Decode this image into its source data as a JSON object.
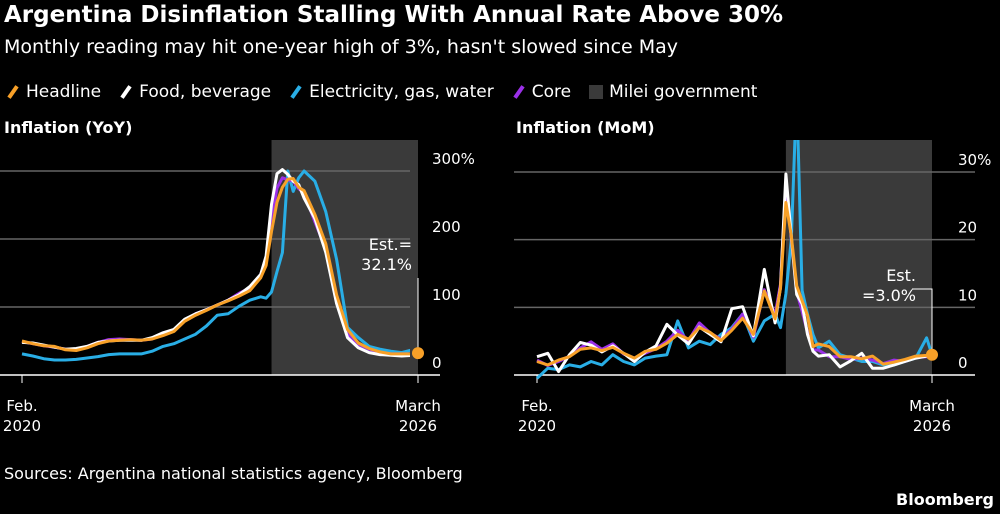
{
  "title": "Argentina Disinflation Stalling With Annual Rate Above 30%",
  "subtitle": "Monthly reading may hit one-year high of 3%, hasn't slowed since May",
  "legend": [
    {
      "label": "Headline",
      "color": "#f7a028"
    },
    {
      "label": "Food, beverage",
      "color": "#ffffff"
    },
    {
      "label": "Electricity, gas, water",
      "color": "#29aee6"
    },
    {
      "label": "Core",
      "color": "#9b30e8"
    },
    {
      "label": "Milei government",
      "color": "#3a3a3a"
    }
  ],
  "source": "Sources: Argentina national statistics agency, Bloomberg",
  "brand": "Bloomberg",
  "chart_data": [
    {
      "type": "line",
      "title": "Inflation (YoY)",
      "ylim": [
        0,
        300
      ],
      "yticks": [
        "0",
        "100",
        "200",
        "300%"
      ],
      "ytick_values": [
        0,
        100,
        200,
        300
      ],
      "xtick_labels": [
        [
          "Feb.",
          "2020"
        ],
        [
          "March",
          "2026"
        ]
      ],
      "xlim": [
        "2020-02",
        "2026-03"
      ],
      "shaded": {
        "label": "Milei government",
        "from": "2023-12",
        "to": "2026-03"
      },
      "annotation": {
        "lines": [
          "Est.=",
          "32.1%"
        ],
        "x": "2026-03",
        "y": 32.1
      },
      "x": [
        "2020-02",
        "2020-04",
        "2020-06",
        "2020-08",
        "2020-10",
        "2020-12",
        "2021-02",
        "2021-04",
        "2021-06",
        "2021-08",
        "2021-10",
        "2021-12",
        "2022-02",
        "2022-04",
        "2022-06",
        "2022-08",
        "2022-10",
        "2022-12",
        "2023-02",
        "2023-04",
        "2023-06",
        "2023-08",
        "2023-10",
        "2023-11",
        "2023-12",
        "2024-01",
        "2024-02",
        "2024-03",
        "2024-04",
        "2024-05",
        "2024-06",
        "2024-08",
        "2024-10",
        "2024-12",
        "2025-02",
        "2025-04",
        "2025-06",
        "2025-08",
        "2025-10",
        "2025-12",
        "2026-02"
      ],
      "series": [
        {
          "name": "Headline",
          "values": [
            50,
            46,
            43,
            42,
            37,
            36,
            40,
            46,
            50,
            51,
            52,
            51,
            53,
            58,
            64,
            79,
            88,
            95,
            103,
            109,
            116,
            124,
            143,
            161,
            211,
            254,
            276,
            288,
            289,
            276,
            271,
            236,
            193,
            118,
            67,
            47,
            39,
            34,
            31,
            31,
            31
          ]
        },
        {
          "name": "Food, beverage",
          "values": [
            48,
            47,
            44,
            41,
            38,
            39,
            42,
            48,
            50,
            51,
            51,
            51,
            55,
            62,
            67,
            82,
            90,
            96,
            103,
            110,
            118,
            130,
            148,
            175,
            251,
            296,
            302,
            295,
            285,
            280,
            260,
            230,
            180,
            105,
            55,
            40,
            33,
            30,
            29,
            28,
            29
          ]
        },
        {
          "name": "Electricity, gas, water",
          "values": [
            31,
            28,
            24,
            22,
            22,
            23,
            25,
            27,
            30,
            31,
            31,
            31,
            35,
            42,
            46,
            53,
            60,
            72,
            88,
            90,
            101,
            110,
            115,
            113,
            122,
            152,
            180,
            300,
            270,
            290,
            300,
            285,
            240,
            170,
            70,
            55,
            42,
            38,
            35,
            33,
            37
          ]
        },
        {
          "name": "Core",
          "values": [
            49,
            46,
            43,
            41,
            38,
            38,
            42,
            48,
            52,
            53,
            52,
            51,
            53,
            60,
            66,
            80,
            90,
            96,
            103,
            110,
            120,
            128,
            148,
            170,
            228,
            275,
            290,
            287,
            285,
            274,
            268,
            225,
            185,
            110,
            60,
            45,
            38,
            33,
            31,
            31,
            31
          ]
        }
      ],
      "estimate_point": {
        "x": "2026-03",
        "y": 32.1
      }
    },
    {
      "type": "line",
      "title": "Inflation (MoM)",
      "ylim": [
        0,
        30
      ],
      "yticks": [
        "0",
        "10",
        "20",
        "30%"
      ],
      "ytick_values": [
        0,
        10,
        20,
        30
      ],
      "xtick_labels": [
        [
          "Feb.",
          "2020"
        ],
        [
          "March",
          "2026"
        ]
      ],
      "xlim": [
        "2020-02",
        "2026-03"
      ],
      "shaded": {
        "label": "Milei government",
        "from": "2023-12",
        "to": "2026-03"
      },
      "annotation": {
        "lines": [
          "Est.",
          "=3.0%"
        ],
        "x": "2026-03",
        "y": 3.0
      },
      "x": [
        "2020-02",
        "2020-04",
        "2020-06",
        "2020-08",
        "2020-10",
        "2020-12",
        "2021-02",
        "2021-04",
        "2021-06",
        "2021-08",
        "2021-10",
        "2021-12",
        "2022-02",
        "2022-04",
        "2022-06",
        "2022-08",
        "2022-10",
        "2022-12",
        "2023-02",
        "2023-04",
        "2023-06",
        "2023-08",
        "2023-10",
        "2023-11",
        "2023-12",
        "2024-01",
        "2024-02",
        "2024-03",
        "2024-04",
        "2024-05",
        "2024-06",
        "2024-08",
        "2024-10",
        "2024-12",
        "2025-02",
        "2025-04",
        "2025-06",
        "2025-08",
        "2025-10",
        "2025-12",
        "2026-02"
      ],
      "series": [
        {
          "name": "Headline",
          "values": [
            2.0,
            1.5,
            2.2,
            2.7,
            3.8,
            4.0,
            3.6,
            4.1,
            3.2,
            2.5,
            3.5,
            3.8,
            4.7,
            6.0,
            5.3,
            7.0,
            6.3,
            5.1,
            6.6,
            8.4,
            6.0,
            12.4,
            8.3,
            12.8,
            25.5,
            20.6,
            13.2,
            11.0,
            8.8,
            4.2,
            4.6,
            4.2,
            2.7,
            2.7,
            2.4,
            2.8,
            1.6,
            1.9,
            2.3,
            2.8,
            2.9
          ]
        },
        {
          "name": "Food, beverage",
          "values": [
            2.7,
            3.2,
            0.5,
            3.0,
            4.8,
            4.4,
            3.4,
            4.3,
            3.2,
            2.0,
            3.4,
            4.3,
            7.5,
            5.9,
            4.6,
            7.1,
            6.0,
            4.9,
            9.8,
            10.1,
            5.8,
            15.6,
            7.7,
            13.0,
            29.7,
            20.4,
            11.9,
            10.5,
            6.0,
            3.5,
            2.8,
            3.0,
            1.2,
            2.1,
            3.2,
            1.0,
            1.0,
            1.5,
            2.0,
            2.5,
            2.8
          ]
        },
        {
          "name": "Electricity, gas, water",
          "values": [
            -0.5,
            1.0,
            0.8,
            1.5,
            1.2,
            2.0,
            1.5,
            3.0,
            2.0,
            1.5,
            2.5,
            2.8,
            3.0,
            8.0,
            4.0,
            5.0,
            4.5,
            6.0,
            7.0,
            9.0,
            5.0,
            8.0,
            9.0,
            7.0,
            12.0,
            20.0,
            42.0,
            12.5,
            9.0,
            6.0,
            4.0,
            5.0,
            3.0,
            2.5,
            2.0,
            2.0,
            1.5,
            1.5,
            2.0,
            2.5,
            5.5
          ]
        },
        {
          "name": "Core",
          "values": [
            2.2,
            1.4,
            2.0,
            2.8,
            4.0,
            4.9,
            3.8,
            4.6,
            3.1,
            2.5,
            3.2,
            3.9,
            5.0,
            6.6,
            5.1,
            7.7,
            6.2,
            5.3,
            6.8,
            9.0,
            5.6,
            12.6,
            8.9,
            13.4,
            28.3,
            20.2,
            12.3,
            9.4,
            6.3,
            3.7,
            3.7,
            2.7,
            2.7,
            2.3,
            2.5,
            2.2,
            1.7,
            2.2,
            2.0,
            2.6,
            2.7
          ]
        }
      ],
      "estimate_point": {
        "x": "2026-03",
        "y": 3.0
      }
    }
  ]
}
